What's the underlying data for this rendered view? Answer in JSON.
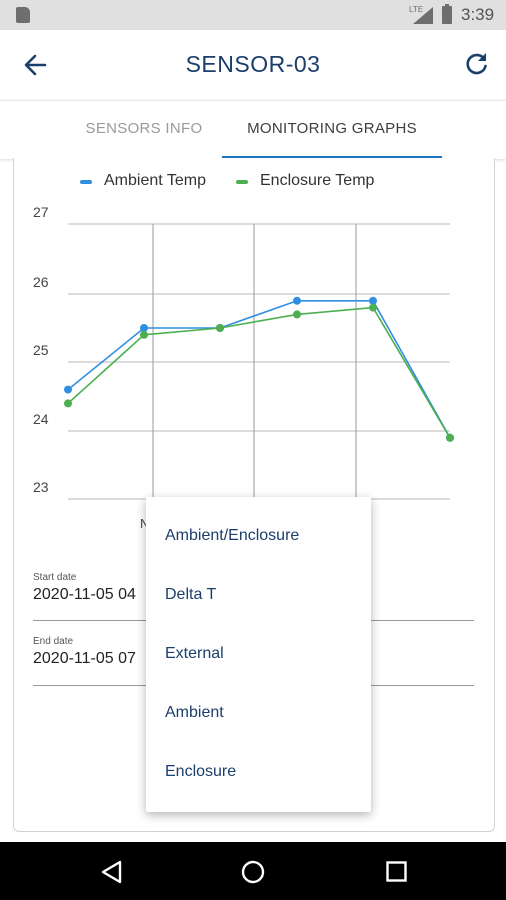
{
  "status_bar": {
    "time": "3:39",
    "network_label": "LTE"
  },
  "app_bar": {
    "title": "SENSOR-03",
    "back_icon": "arrow-left-icon",
    "refresh_icon": "refresh-icon"
  },
  "tabs": [
    {
      "label": "SENSORS INFO",
      "active": false
    },
    {
      "label": "MONITORING GRAPHS",
      "active": true
    }
  ],
  "chart_data": {
    "type": "line",
    "x": [
      1,
      2,
      3,
      4,
      5,
      6
    ],
    "ylim": [
      23,
      27
    ],
    "yticks": [
      "27",
      "26",
      "25",
      "24",
      "23"
    ],
    "grid": true,
    "legend_position": "top",
    "series": [
      {
        "name": "Ambient Temp",
        "color": "#2f8fe0",
        "values": [
          24.6,
          25.5,
          25.5,
          25.9,
          25.9,
          23.9
        ]
      },
      {
        "name": "Enclosure Temp",
        "color": "#4caf50",
        "values": [
          24.4,
          25.4,
          25.5,
          25.7,
          25.8,
          23.9
        ]
      }
    ],
    "visible_xtick_fragment": "N"
  },
  "fields": {
    "start": {
      "label": "Start date",
      "value": "2020-11-05 04"
    },
    "end": {
      "label": "End date",
      "value": "2020-11-05 07"
    }
  },
  "menu": {
    "items": [
      "Ambient/Enclosure",
      "Delta T",
      "External",
      "Ambient",
      "Enclosure"
    ]
  }
}
